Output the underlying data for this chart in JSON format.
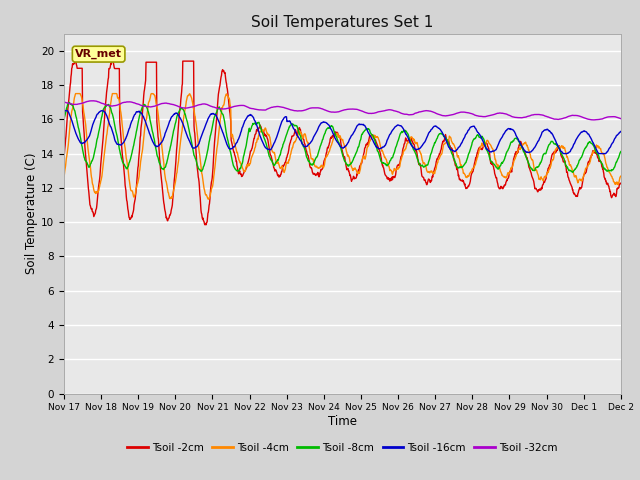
{
  "title": "Soil Temperatures Set 1",
  "xlabel": "Time",
  "ylabel": "Soil Temperature (C)",
  "ylim": [
    0,
    21
  ],
  "yticks": [
    0,
    2,
    4,
    6,
    8,
    10,
    12,
    14,
    16,
    18,
    20
  ],
  "fig_bg_color": "#d4d4d4",
  "plot_bg_color": "#e8e8e8",
  "series": {
    "Tsoil -2cm": {
      "color": "#dd0000"
    },
    "Tsoil -4cm": {
      "color": "#ff8800"
    },
    "Tsoil -8cm": {
      "color": "#00bb00"
    },
    "Tsoil -16cm": {
      "color": "#0000cc"
    },
    "Tsoil -32cm": {
      "color": "#aa00cc"
    }
  },
  "legend_label": "VR_met",
  "xtick_labels": [
    "Nov 17",
    "Nov 18",
    "Nov 19",
    "Nov 20",
    "Nov 21",
    "Nov 22",
    "Nov 23",
    "Nov 24",
    "Nov 25",
    "Nov 26",
    "Nov 27",
    "Nov 28",
    "Nov 29",
    "Nov 30",
    "Dec 1",
    "Dec 2"
  ]
}
